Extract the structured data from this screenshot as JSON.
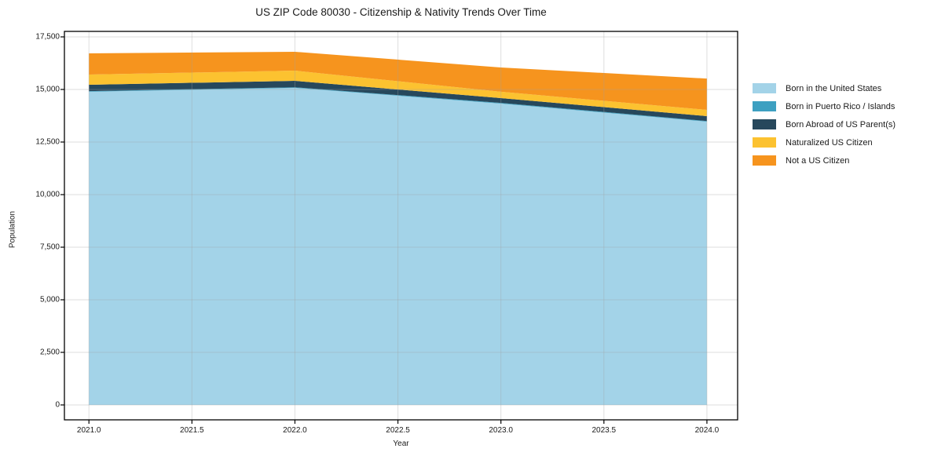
{
  "chart_data": {
    "type": "area",
    "stacked": true,
    "title": "US ZIP Code 80030 - Citizenship & Nativity Trends Over Time",
    "xlabel": "Year",
    "ylabel": "Population",
    "x": [
      2021,
      2022,
      2023,
      2024
    ],
    "series": [
      {
        "name": "Born in the United States",
        "color": "#a3d3e8",
        "values": [
          14890,
          15075,
          14330,
          13470
        ]
      },
      {
        "name": "Born in Puerto Rico / Islands",
        "color": "#3da0c1",
        "values": [
          30,
          30,
          30,
          30
        ]
      },
      {
        "name": "Born Abroad of US Parent(s)",
        "color": "#27485c",
        "values": [
          305,
          305,
          230,
          230
        ]
      },
      {
        "name": "Naturalized US Citizen",
        "color": "#fcc230",
        "values": [
          485,
          485,
          300,
          300
        ]
      },
      {
        "name": "Not a US Citizen",
        "color": "#f6941e",
        "values": [
          1005,
          895,
          1155,
          1490
        ]
      }
    ],
    "totals": [
      16715,
      16790,
      16045,
      15520
    ],
    "x_ticks": [
      "2021.0",
      "2021.5",
      "2022.0",
      "2022.5",
      "2023.0",
      "2023.5",
      "2024.0"
    ],
    "x_tick_values": [
      2021,
      2021.5,
      2022,
      2022.5,
      2023,
      2023.5,
      2024
    ],
    "y_ticks": [
      "0",
      "2,500",
      "5,000",
      "7,500",
      "10,000",
      "12,500",
      "15,000",
      "17,500"
    ],
    "y_tick_values": [
      0,
      2500,
      5000,
      7500,
      10000,
      12500,
      15000,
      17500
    ],
    "xlim": [
      2020.881,
      2024.149
    ],
    "ylim": [
      -709,
      17761
    ],
    "grid": true,
    "legend_position": "right",
    "colors": {
      "background": "#ffffff",
      "spine": "#000000",
      "gridline": "rgba(160,160,160,0.35)",
      "text": "#1a1a1a"
    }
  }
}
